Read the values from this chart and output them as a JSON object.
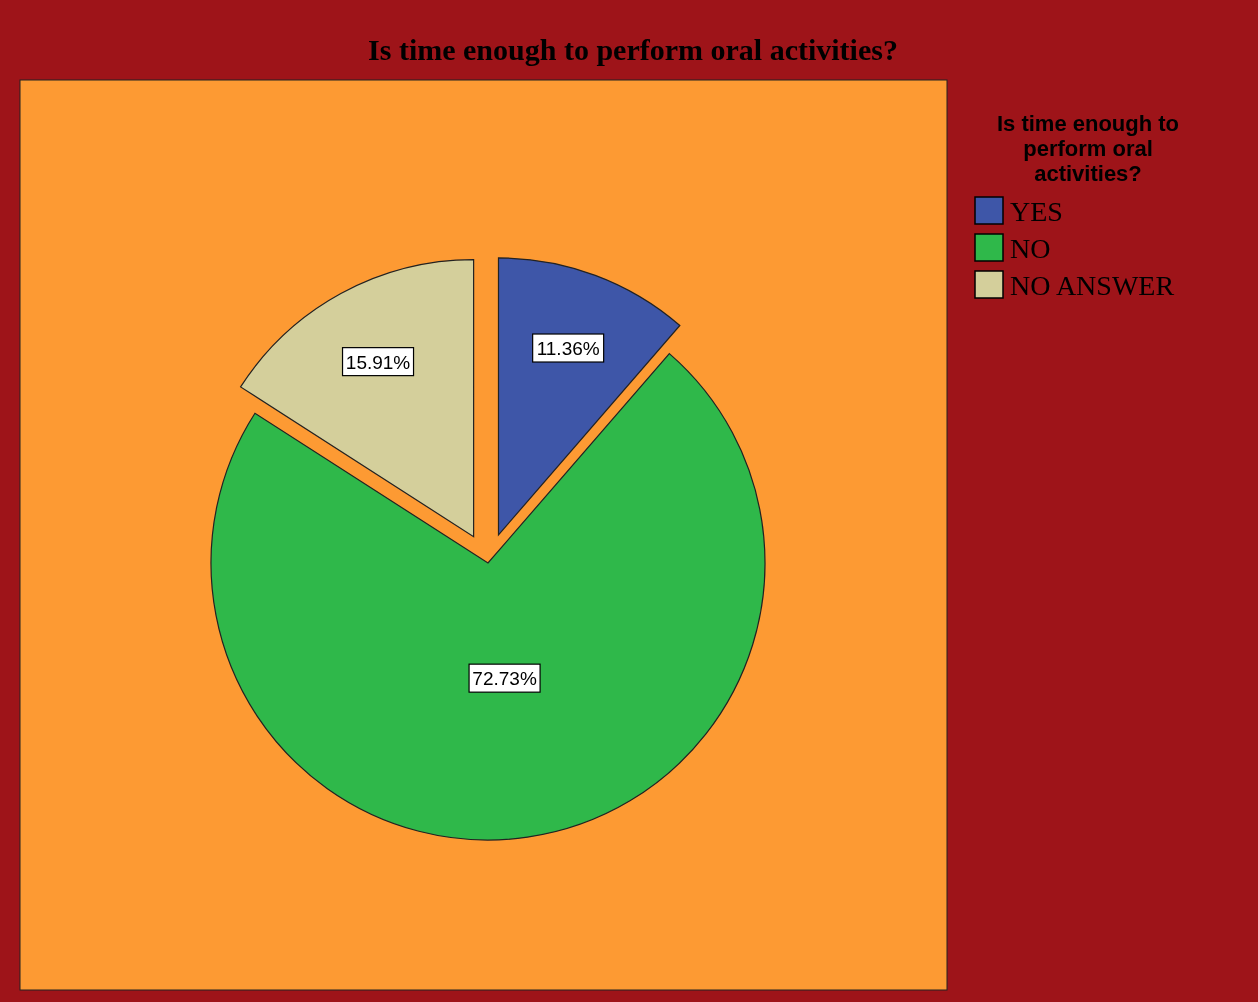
{
  "chart_data": {
    "type": "pie",
    "title": "Is time enough to perform oral activities?",
    "legend_title": "Is time enough to perform oral activities?",
    "legend": "right",
    "categories": [
      "YES",
      "NO",
      "NO ANSWER"
    ],
    "values": [
      11.36,
      72.73,
      15.91
    ],
    "colors": [
      "#3e56a8",
      "#2fb84a",
      "#d4cf9b"
    ],
    "value_labels": [
      "11.36%",
      "72.73%",
      "15.91%"
    ]
  }
}
